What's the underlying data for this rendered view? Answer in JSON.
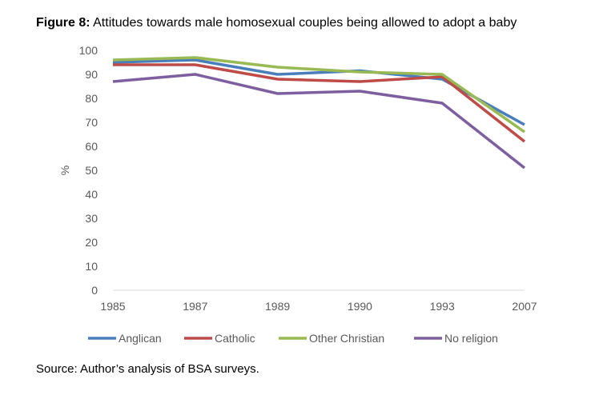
{
  "chart_data": {
    "type": "line",
    "title_prefix": "Figure 8:",
    "title": "Attitudes towards male homosexual couples being allowed to adopt a baby",
    "xlabel": "",
    "ylabel": "%",
    "ylim": [
      0,
      100
    ],
    "yticks": [
      0,
      10,
      20,
      30,
      40,
      50,
      60,
      70,
      80,
      90,
      100
    ],
    "categories": [
      "1985",
      "1987",
      "1989",
      "1990",
      "1993",
      "2007"
    ],
    "series": [
      {
        "name": "Anglican",
        "color": "#4a7ebb",
        "values": [
          95,
          96,
          90,
          91.5,
          88,
          69
        ]
      },
      {
        "name": "Catholic",
        "color": "#be4b48",
        "values": [
          94,
          94,
          88,
          87,
          89,
          62
        ]
      },
      {
        "name": "Other Christian",
        "color": "#98b954",
        "values": [
          96,
          97,
          93,
          91,
          90,
          66
        ]
      },
      {
        "name": "No religion",
        "color": "#7d5fa0",
        "values": [
          87,
          90,
          82,
          83,
          78,
          51
        ]
      }
    ],
    "legend": "bottom",
    "grid": false
  },
  "source": "Source: Author’s analysis of BSA surveys."
}
